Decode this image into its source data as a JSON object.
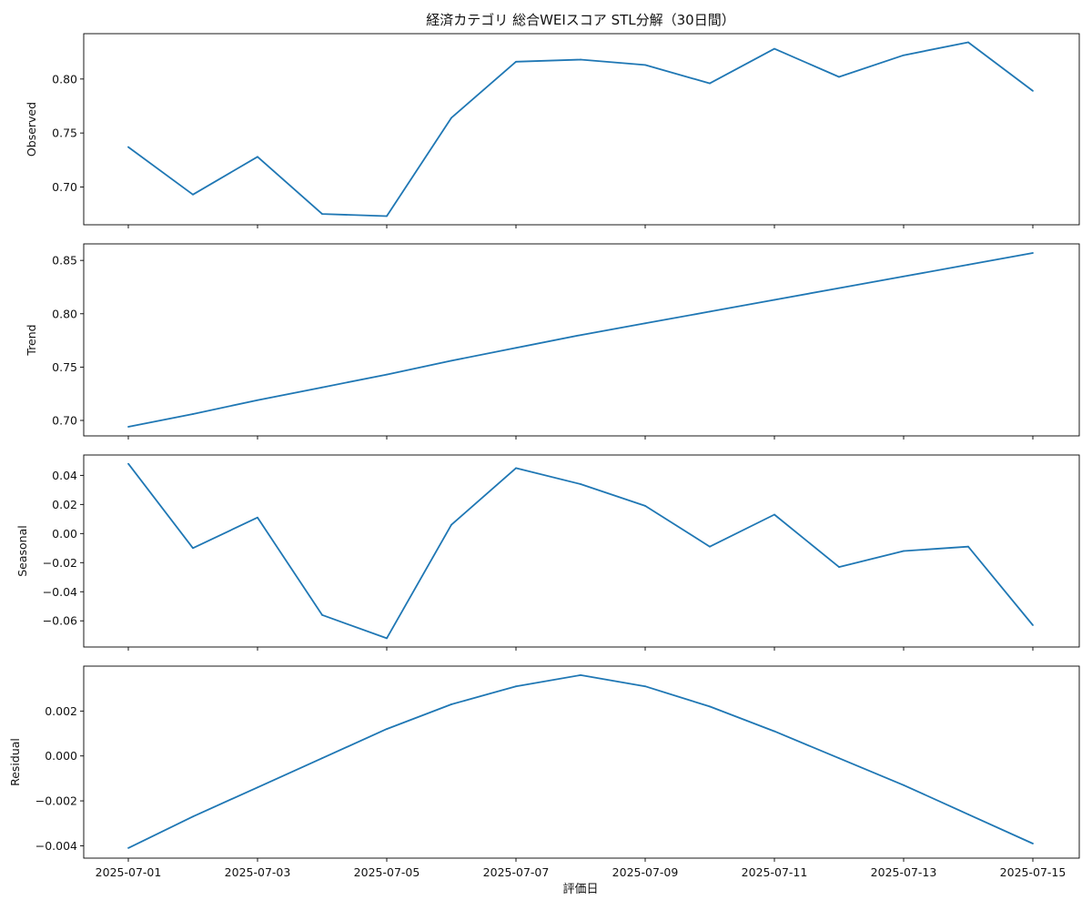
{
  "figure": {
    "title": "経済カテゴリ 総合WEIスコア STL分解（30日間）",
    "xlabel": "評価日"
  },
  "chart_data": [
    {
      "type": "line",
      "title": "",
      "ylabel": "Observed",
      "x": [
        "2025-07-01",
        "2025-07-02",
        "2025-07-03",
        "2025-07-04",
        "2025-07-05",
        "2025-07-06",
        "2025-07-07",
        "2025-07-08",
        "2025-07-09",
        "2025-07-10",
        "2025-07-11",
        "2025-07-12",
        "2025-07-13",
        "2025-07-14",
        "2025-07-15"
      ],
      "values": [
        0.737,
        0.693,
        0.728,
        0.675,
        0.673,
        0.764,
        0.816,
        0.818,
        0.813,
        0.796,
        0.828,
        0.802,
        0.822,
        0.834,
        0.789
      ],
      "ylim": [
        0.665,
        0.842
      ],
      "yticks": [
        0.7,
        0.75,
        0.8
      ],
      "ytick_labels": [
        "0.70",
        "0.75",
        "0.80"
      ],
      "grid": false,
      "color": "#1f77b4"
    },
    {
      "type": "line",
      "title": "",
      "ylabel": "Trend",
      "x": [
        "2025-07-01",
        "2025-07-02",
        "2025-07-03",
        "2025-07-04",
        "2025-07-05",
        "2025-07-06",
        "2025-07-07",
        "2025-07-08",
        "2025-07-09",
        "2025-07-10",
        "2025-07-11",
        "2025-07-12",
        "2025-07-13",
        "2025-07-14",
        "2025-07-15"
      ],
      "values": [
        0.694,
        0.706,
        0.719,
        0.731,
        0.743,
        0.756,
        0.768,
        0.78,
        0.791,
        0.802,
        0.813,
        0.824,
        0.835,
        0.846,
        0.857
      ],
      "ylim": [
        0.6855,
        0.8655
      ],
      "yticks": [
        0.7,
        0.75,
        0.8,
        0.85
      ],
      "ytick_labels": [
        "0.70",
        "0.75",
        "0.80",
        "0.85"
      ],
      "grid": false,
      "color": "#1f77b4"
    },
    {
      "type": "line",
      "title": "",
      "ylabel": "Seasonal",
      "x": [
        "2025-07-01",
        "2025-07-02",
        "2025-07-03",
        "2025-07-04",
        "2025-07-05",
        "2025-07-06",
        "2025-07-07",
        "2025-07-08",
        "2025-07-09",
        "2025-07-10",
        "2025-07-11",
        "2025-07-12",
        "2025-07-13",
        "2025-07-14",
        "2025-07-15"
      ],
      "values": [
        0.048,
        -0.01,
        0.011,
        -0.056,
        -0.072,
        0.006,
        0.045,
        0.034,
        0.019,
        -0.009,
        0.013,
        -0.023,
        -0.012,
        -0.009,
        -0.063
      ],
      "ylim": [
        -0.078,
        0.054
      ],
      "yticks": [
        0.04,
        0.02,
        0.0,
        -0.02,
        -0.04,
        -0.06
      ],
      "ytick_labels": [
        "0.04",
        "0.02",
        "0.00",
        "−0.02",
        "−0.04",
        "−0.06"
      ],
      "grid": false,
      "color": "#1f77b4"
    },
    {
      "type": "line",
      "title": "",
      "ylabel": "Residual",
      "x": [
        "2025-07-01",
        "2025-07-02",
        "2025-07-03",
        "2025-07-04",
        "2025-07-05",
        "2025-07-06",
        "2025-07-07",
        "2025-07-08",
        "2025-07-09",
        "2025-07-10",
        "2025-07-11",
        "2025-07-12",
        "2025-07-13",
        "2025-07-14",
        "2025-07-15"
      ],
      "values": [
        -0.0041,
        -0.0027,
        -0.0014,
        -0.0001,
        0.0012,
        0.0023,
        0.0031,
        0.0036,
        0.0031,
        0.0022,
        0.0011,
        -0.0001,
        -0.0013,
        -0.0026,
        -0.0039
      ],
      "ylim": [
        -0.00455,
        0.004
      ],
      "yticks": [
        0.002,
        0.0,
        -0.002,
        -0.004
      ],
      "ytick_labels": [
        "0.002",
        "0.000",
        "−0.002",
        "−0.004"
      ],
      "grid": false,
      "color": "#1f77b4"
    }
  ],
  "xaxis": {
    "tick_indices": [
      0,
      2,
      4,
      6,
      8,
      10,
      12,
      14
    ],
    "tick_labels": [
      "2025-07-01",
      "2025-07-03",
      "2025-07-05",
      "2025-07-07",
      "2025-07-09",
      "2025-07-11",
      "2025-07-13",
      "2025-07-15"
    ]
  }
}
